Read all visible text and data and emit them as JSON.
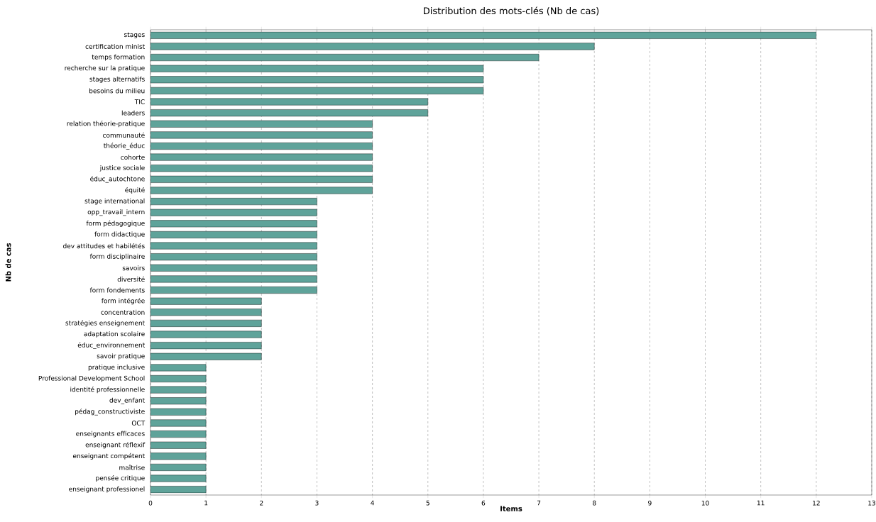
{
  "chart_data": {
    "type": "bar",
    "orientation": "horizontal",
    "title": "Distribution des mots-clés (Nb de cas)",
    "xlabel": "Items",
    "ylabel": "Nb de cas",
    "categories": [
      "stages",
      "certification minist",
      "temps formation",
      "recherche sur la pratique",
      "stages alternatifs",
      "besoins du milieu",
      "TIC",
      "leaders",
      "relation théorie-pratique",
      "communauté",
      "théorie_éduc",
      "cohorte",
      "justice sociale",
      "éduc_autochtone",
      "équité",
      "stage international",
      "opp_travail_intern",
      "form pédagogique",
      "form didactique",
      "dev attitudes et habilétés",
      "form disciplinaire",
      "savoirs",
      "diversité",
      "form fondements",
      "form intégrée",
      "concentration",
      "stratégies enseignement",
      "adaptation scolaire",
      "éduc_environnement",
      "savoir pratique",
      "pratique inclusive",
      "Professional Development School",
      "identité professionnelle",
      "dev_enfant",
      "pédag_constructiviste",
      "OCT",
      "enseignants efficaces",
      "enseignant réflexif",
      "enseignant compétent",
      "maîtrise",
      "pensée critique",
      "enseignant professionel"
    ],
    "values": [
      12,
      8,
      7,
      6,
      6,
      6,
      5,
      5,
      4,
      4,
      4,
      4,
      4,
      4,
      4,
      3,
      3,
      3,
      3,
      3,
      3,
      3,
      3,
      3,
      2,
      2,
      2,
      2,
      2,
      2,
      1,
      1,
      1,
      1,
      1,
      1,
      1,
      1,
      1,
      1,
      1,
      1
    ],
    "color": "#5fa39a",
    "xlim": [
      0,
      13
    ],
    "xticks": [
      0,
      1,
      2,
      3,
      4,
      5,
      6,
      7,
      8,
      9,
      10,
      11,
      12,
      13
    ],
    "grid": "x"
  }
}
